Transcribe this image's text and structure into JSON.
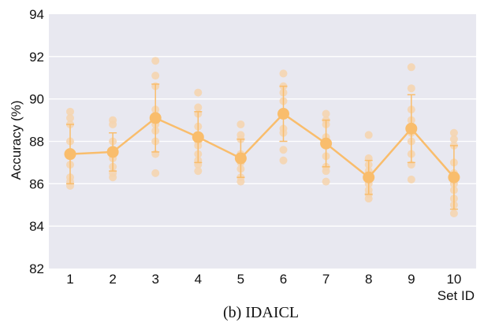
{
  "chart_data": {
    "type": "scatter",
    "xlabel": "Set ID",
    "ylabel": "Accuracy (%)",
    "caption": "(b) IDAICL",
    "categories": [
      "1",
      "2",
      "3",
      "4",
      "5",
      "6",
      "7",
      "8",
      "9",
      "10"
    ],
    "ylim": [
      82,
      94
    ],
    "yticks": [
      "82",
      "84",
      "86",
      "88",
      "90",
      "92",
      "94"
    ],
    "grid": "horizontal",
    "colors": {
      "background": "#e8e8f0",
      "grid": "#ffffff",
      "points": "#f5d5b0",
      "mean": "#f9bd6c"
    },
    "series": [
      {
        "role": "mean",
        "x": [
          1,
          2,
          3,
          4,
          5,
          6,
          7,
          8,
          9,
          10
        ],
        "y": [
          87.4,
          87.5,
          89.1,
          88.2,
          87.2,
          89.3,
          87.9,
          86.3,
          88.6,
          86.3
        ],
        "err": [
          1.4,
          0.9,
          1.6,
          1.2,
          0.9,
          1.3,
          1.1,
          0.8,
          1.6,
          1.5
        ]
      },
      {
        "role": "trials",
        "points": [
          [
            1,
            89.4
          ],
          [
            1,
            89.1
          ],
          [
            1,
            88.8
          ],
          [
            1,
            88.0
          ],
          [
            1,
            87.4
          ],
          [
            1,
            86.9
          ],
          [
            1,
            86.3
          ],
          [
            1,
            86.1
          ],
          [
            1,
            85.9
          ],
          [
            2,
            89.0
          ],
          [
            2,
            88.8
          ],
          [
            2,
            88.0
          ],
          [
            2,
            87.6
          ],
          [
            2,
            87.2
          ],
          [
            2,
            86.8
          ],
          [
            2,
            86.5
          ],
          [
            2,
            86.3
          ],
          [
            3,
            91.8
          ],
          [
            3,
            91.1
          ],
          [
            3,
            90.6
          ],
          [
            3,
            89.5
          ],
          [
            3,
            89.2
          ],
          [
            3,
            88.8
          ],
          [
            3,
            88.5
          ],
          [
            3,
            88.0
          ],
          [
            3,
            87.4
          ],
          [
            3,
            86.5
          ],
          [
            4,
            90.3
          ],
          [
            4,
            89.6
          ],
          [
            4,
            89.3
          ],
          [
            4,
            88.7
          ],
          [
            4,
            88.0
          ],
          [
            4,
            87.8
          ],
          [
            4,
            87.4
          ],
          [
            4,
            87.1
          ],
          [
            4,
            86.9
          ],
          [
            4,
            86.6
          ],
          [
            5,
            88.8
          ],
          [
            5,
            88.3
          ],
          [
            5,
            88.1
          ],
          [
            5,
            87.4
          ],
          [
            5,
            87.0
          ],
          [
            5,
            86.7
          ],
          [
            5,
            86.3
          ],
          [
            5,
            86.1
          ],
          [
            6,
            91.2
          ],
          [
            6,
            90.6
          ],
          [
            6,
            90.3
          ],
          [
            6,
            89.9
          ],
          [
            6,
            89.3
          ],
          [
            6,
            88.6
          ],
          [
            6,
            88.4
          ],
          [
            6,
            87.6
          ],
          [
            6,
            87.1
          ],
          [
            7,
            89.3
          ],
          [
            7,
            89.0
          ],
          [
            7,
            88.8
          ],
          [
            7,
            88.2
          ],
          [
            7,
            87.8
          ],
          [
            7,
            87.3
          ],
          [
            7,
            86.8
          ],
          [
            7,
            86.6
          ],
          [
            7,
            86.1
          ],
          [
            8,
            88.3
          ],
          [
            8,
            87.2
          ],
          [
            8,
            86.9
          ],
          [
            8,
            86.6
          ],
          [
            8,
            86.3
          ],
          [
            8,
            86.0
          ],
          [
            8,
            85.7
          ],
          [
            8,
            85.5
          ],
          [
            8,
            85.3
          ],
          [
            9,
            91.5
          ],
          [
            9,
            90.5
          ],
          [
            9,
            89.5
          ],
          [
            9,
            89.0
          ],
          [
            9,
            88.4
          ],
          [
            9,
            88.0
          ],
          [
            9,
            87.4
          ],
          [
            9,
            86.9
          ],
          [
            9,
            86.2
          ],
          [
            10,
            88.4
          ],
          [
            10,
            88.1
          ],
          [
            10,
            87.8
          ],
          [
            10,
            87.0
          ],
          [
            10,
            86.5
          ],
          [
            10,
            86.0
          ],
          [
            10,
            85.7
          ],
          [
            10,
            85.3
          ],
          [
            10,
            85.0
          ],
          [
            10,
            84.6
          ]
        ]
      }
    ]
  }
}
